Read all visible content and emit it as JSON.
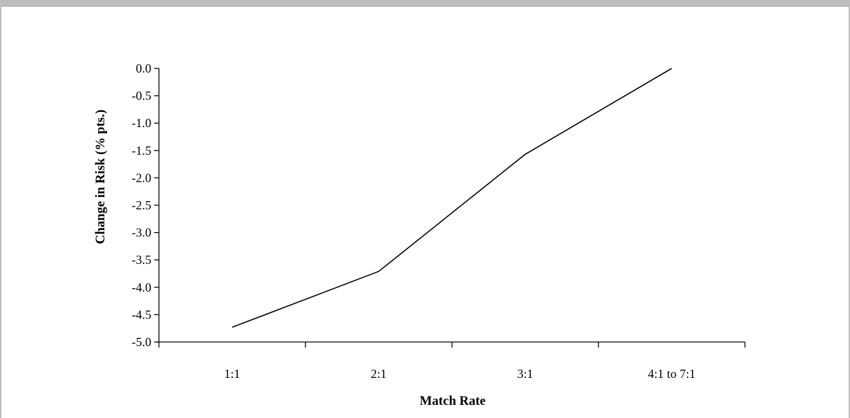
{
  "chart_data": {
    "type": "line",
    "categories": [
      "1:1",
      "2:1",
      "3:1",
      "4:1 to 7:1"
    ],
    "series": [
      {
        "values": [
          -4.73,
          -3.71,
          -1.57,
          0.0
        ]
      }
    ],
    "xlabel": "Match Rate",
    "ylabel": "Change in Risk (% pts.)",
    "ylim": [
      -5.0,
      0.0
    ],
    "yticks": [
      "0.0",
      "-0.5",
      "-1.0",
      "-1.5",
      "-2.0",
      "-2.5",
      "-3.0",
      "-3.5",
      "-4.0",
      "-4.5",
      "-5.0"
    ],
    "grid": false,
    "line_color": "#000000"
  }
}
